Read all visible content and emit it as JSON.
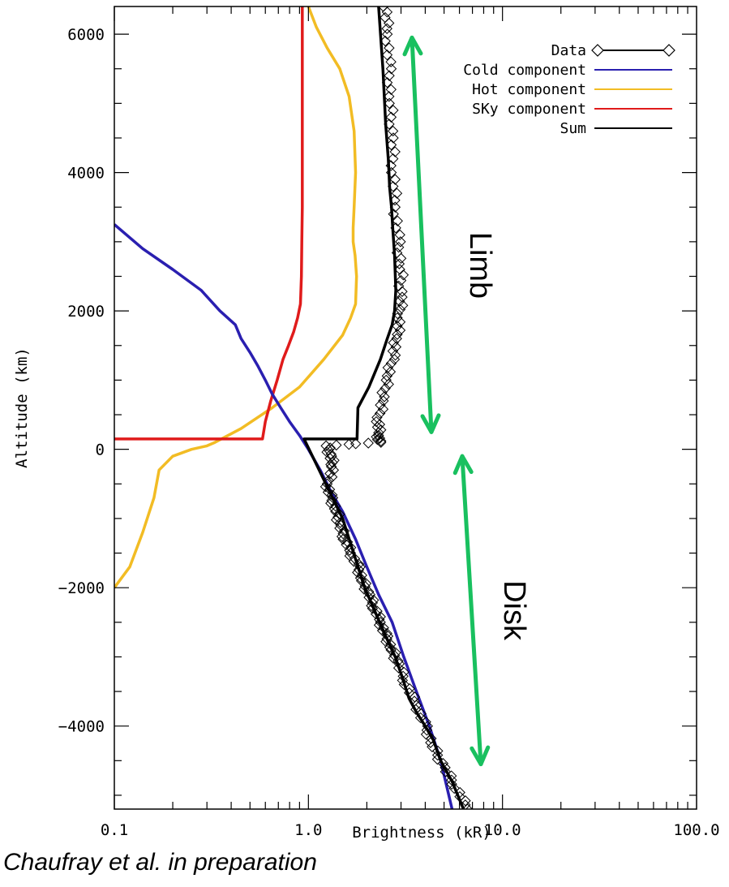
{
  "chart_data": {
    "type": "line",
    "xlabel": "Brightness (kR)",
    "ylabel": "Altitude (km)",
    "xscale": "log",
    "xlim": [
      0.1,
      100.0
    ],
    "ylim": [
      -5200,
      6400
    ],
    "xticks": [
      {
        "value": 0.1,
        "label": "0.1"
      },
      {
        "value": 1.0,
        "label": "1.0"
      },
      {
        "value": 10.0,
        "label": "10.0"
      },
      {
        "value": 100.0,
        "label": "100.0"
      }
    ],
    "yticks": [
      {
        "value": 6000,
        "label": "6000"
      },
      {
        "value": 4000,
        "label": "4000"
      },
      {
        "value": 2000,
        "label": "2000"
      },
      {
        "value": 0,
        "label": "0"
      },
      {
        "value": -2000,
        "label": "−2000"
      },
      {
        "value": -4000,
        "label": "−4000"
      }
    ],
    "legend_position": "top-right",
    "series": [
      {
        "name": "Data",
        "color": "#000000",
        "marker": "diamond",
        "x": [
          2.5,
          2.55,
          2.6,
          2.65,
          2.7,
          2.75,
          2.8,
          2.9,
          3.0,
          3.0,
          2.95,
          2.85,
          2.7,
          2.55,
          2.4,
          2.3,
          2.3,
          2.3,
          1.25,
          1.3,
          1.35,
          1.25,
          1.3,
          1.4,
          1.45,
          1.55,
          1.65,
          1.8,
          1.9,
          2.05,
          2.2,
          2.35,
          2.5,
          2.7,
          2.9,
          3.2,
          3.6,
          4.0,
          4.4,
          5.0,
          5.8,
          6.6
        ],
        "y": [
          6400,
          6000,
          5500,
          5000,
          4500,
          4000,
          3500,
          3000,
          2600,
          2200,
          1900,
          1600,
          1300,
          1000,
          700,
          400,
          200,
          100,
          50,
          -100,
          -250,
          -500,
          -700,
          -900,
          -1100,
          -1300,
          -1500,
          -1700,
          -1900,
          -2100,
          -2300,
          -2500,
          -2700,
          -2900,
          -3100,
          -3400,
          -3700,
          -4000,
          -4300,
          -4600,
          -4900,
          -5200
        ]
      },
      {
        "name": "Cold component",
        "color": "#2a1fb0",
        "x": [
          0.1,
          0.14,
          0.2,
          0.28,
          0.35,
          0.42,
          0.45,
          0.5,
          0.55,
          0.6,
          0.65,
          0.72,
          0.8,
          0.9,
          1.0,
          1.15,
          1.3,
          1.5,
          1.75,
          2.0,
          2.3,
          2.7,
          3.1,
          3.6,
          4.2,
          4.8,
          5.5
        ],
        "y": [
          3250,
          2900,
          2600,
          2300,
          2000,
          1800,
          1600,
          1400,
          1200,
          1000,
          800,
          600,
          400,
          200,
          0,
          -300,
          -600,
          -900,
          -1300,
          -1700,
          -2100,
          -2500,
          -3000,
          -3500,
          -4000,
          -4500,
          -5200
        ]
      },
      {
        "name": "Hot component",
        "color": "#f2bc24",
        "x": [
          1.0,
          1.1,
          1.25,
          1.45,
          1.62,
          1.72,
          1.75,
          1.72,
          1.7,
          1.7,
          1.74,
          1.77,
          1.75,
          1.65,
          1.5,
          1.2,
          0.9,
          0.65,
          0.45,
          0.33,
          0.3,
          0.25,
          0.2,
          0.17,
          0.16,
          0.14,
          0.12,
          0.1
        ],
        "y": [
          6400,
          6100,
          5800,
          5500,
          5100,
          4600,
          4000,
          3500,
          3200,
          3000,
          2800,
          2500,
          2100,
          1900,
          1650,
          1300,
          900,
          600,
          300,
          100,
          50,
          0,
          -100,
          -300,
          -700,
          -1200,
          -1700,
          -2000
        ]
      },
      {
        "name": "SKy component",
        "color": "#e01b1b",
        "x": [
          0.93,
          0.93,
          0.93,
          0.925,
          0.92,
          0.91,
          0.88,
          0.84,
          0.79,
          0.74,
          0.69,
          0.64,
          0.6,
          0.58,
          0.1
        ],
        "y": [
          6400,
          5000,
          3500,
          3000,
          2500,
          2100,
          1900,
          1700,
          1500,
          1300,
          1000,
          700,
          400,
          150,
          150
        ]
      },
      {
        "name": "Sum",
        "color": "#000000",
        "x": [
          2.3,
          2.42,
          2.5,
          2.58,
          2.6,
          2.62,
          2.68,
          2.72,
          2.78,
          2.82,
          2.78,
          2.7,
          2.55,
          2.35,
          2.05,
          1.8,
          1.78,
          0.95,
          1.5,
          1.95,
          2.5,
          2.8,
          3.05,
          3.3,
          3.6,
          4.0,
          4.4,
          4.8,
          5.5,
          6.3
        ],
        "y": [
          6400,
          5500,
          4700,
          4200,
          4000,
          3800,
          3500,
          3200,
          2800,
          2300,
          2000,
          1800,
          1600,
          1300,
          900,
          600,
          150,
          150,
          -1000,
          -2000,
          -2700,
          -3000,
          -3300,
          -3600,
          -3800,
          -4000,
          -4200,
          -4500,
          -4800,
          -5200
        ]
      }
    ],
    "annotations": [
      {
        "text": "Limb",
        "covers_y": [
          250,
          5950
        ]
      },
      {
        "text": "Disk",
        "covers_y": [
          -4550,
          -100
        ]
      }
    ],
    "arrow_color": "#19c05f"
  },
  "credit": "Chaufray et al. in preparation"
}
